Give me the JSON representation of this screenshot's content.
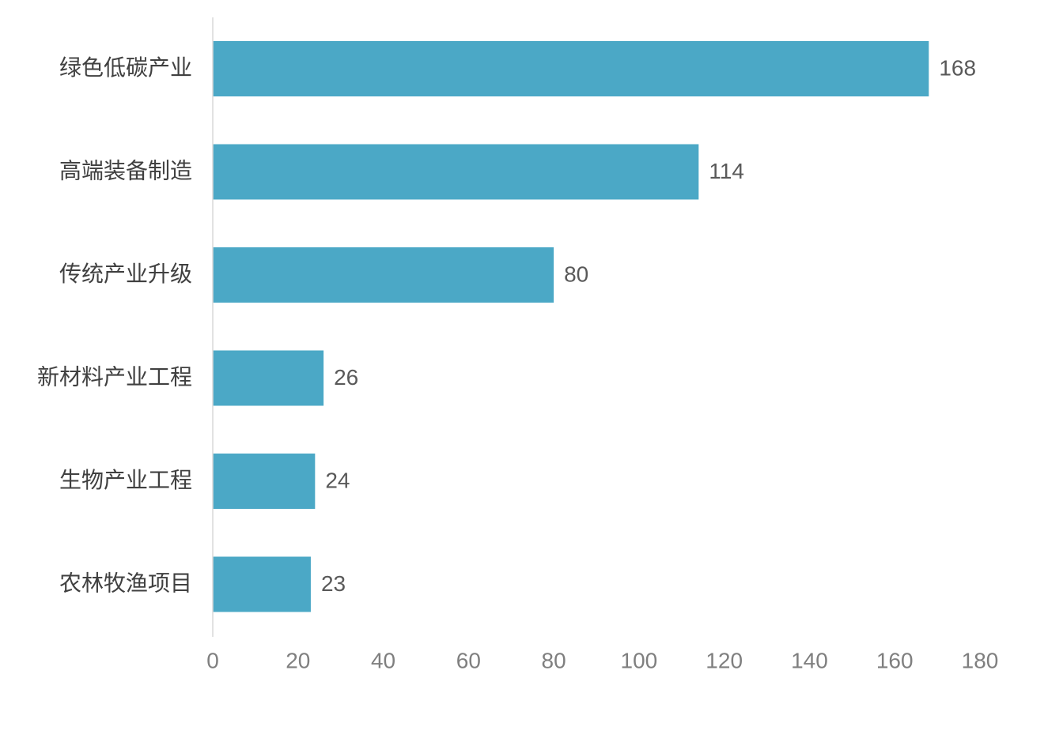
{
  "chart_data": {
    "type": "bar",
    "orientation": "horizontal",
    "title": "",
    "xlabel": "",
    "ylabel": "",
    "categories": [
      "绿色低碳产业",
      "高端装备制造",
      "传统产业升级",
      "新材料产业工程",
      "生物产业工程",
      "农林牧渔项目"
    ],
    "values": [
      168,
      114,
      80,
      26,
      24,
      23
    ],
    "data_labels": [
      "168",
      "114",
      "80",
      "26",
      "24",
      "23"
    ],
    "xlim": [
      0,
      180
    ],
    "xticks": [
      0,
      20,
      40,
      60,
      80,
      100,
      120,
      140,
      160,
      180
    ],
    "xtick_labels": [
      "0",
      "20",
      "40",
      "60",
      "80",
      "100",
      "120",
      "140",
      "160",
      "180"
    ],
    "grid": false,
    "legend": "none",
    "colors": {
      "bar": "#4BA8C6",
      "axis": "#D9D9D9",
      "category_text": "#404040",
      "value_text": "#595959",
      "tick_text": "#7F7F7F"
    }
  }
}
